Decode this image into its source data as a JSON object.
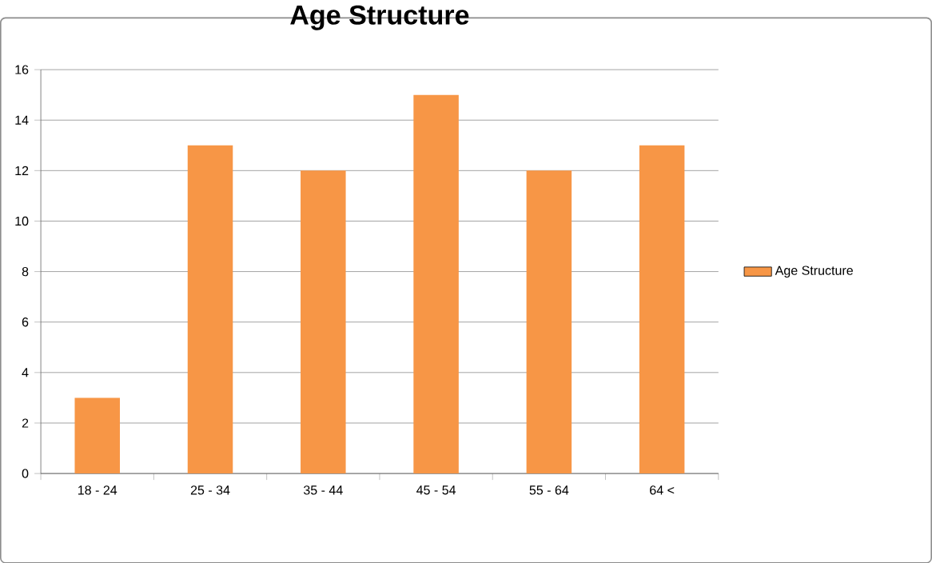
{
  "chart_data": {
    "type": "bar",
    "title": "Age Structure",
    "categories": [
      "18 - 24",
      "25 - 34",
      "35 - 44",
      "45 - 54",
      "55 - 64",
      "64 <"
    ],
    "series": [
      {
        "name": "Age Structure",
        "color": "#f79646",
        "values": [
          3,
          13,
          12,
          15,
          12,
          13
        ]
      }
    ],
    "ylim": [
      0,
      16
    ],
    "yticks": [
      0,
      2,
      4,
      6,
      8,
      10,
      12,
      14,
      16
    ],
    "grid": "y",
    "legend": "right"
  }
}
